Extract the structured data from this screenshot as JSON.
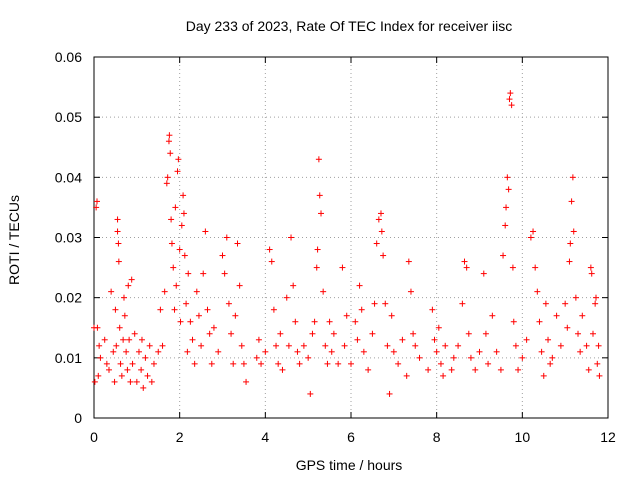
{
  "chart_data": {
    "type": "scatter",
    "title": "Day 233 of 2023, Rate Of TEC Index for receiver iisc",
    "xlabel": "GPS time / hours",
    "ylabel": "ROTI / TECUs",
    "xlim": [
      0,
      12
    ],
    "ylim": [
      0,
      0.06
    ],
    "xticks": [
      "0",
      "2",
      "4",
      "6",
      "8",
      "10",
      "12"
    ],
    "yticks": [
      "0",
      "0.01",
      "0.02",
      "0.03",
      "0.04",
      "0.05",
      "0.06"
    ],
    "grid": true,
    "legend": "none",
    "marker": "plus",
    "color": "#ff0000",
    "series": [
      {
        "points": [
          [
            0.0,
            0.015
          ],
          [
            0.02,
            0.006
          ],
          [
            0.05,
            0.035
          ],
          [
            0.07,
            0.036
          ],
          [
            0.08,
            0.015
          ],
          [
            0.1,
            0.007
          ],
          [
            0.12,
            0.012
          ],
          [
            0.15,
            0.01
          ],
          [
            0.25,
            0.013
          ],
          [
            0.3,
            0.009
          ],
          [
            0.35,
            0.008
          ],
          [
            0.4,
            0.021
          ],
          [
            0.45,
            0.011
          ],
          [
            0.48,
            0.006
          ],
          [
            0.5,
            0.018
          ],
          [
            0.52,
            0.012
          ],
          [
            0.55,
            0.033
          ],
          [
            0.55,
            0.031
          ],
          [
            0.57,
            0.029
          ],
          [
            0.58,
            0.026
          ],
          [
            0.6,
            0.015
          ],
          [
            0.62,
            0.009
          ],
          [
            0.65,
            0.007
          ],
          [
            0.68,
            0.013
          ],
          [
            0.7,
            0.02
          ],
          [
            0.72,
            0.017
          ],
          [
            0.75,
            0.011
          ],
          [
            0.78,
            0.008
          ],
          [
            0.8,
            0.022
          ],
          [
            0.82,
            0.013
          ],
          [
            0.85,
            0.006
          ],
          [
            0.88,
            0.023
          ],
          [
            0.9,
            0.009
          ],
          [
            0.95,
            0.014
          ],
          [
            1.0,
            0.006
          ],
          [
            1.05,
            0.011
          ],
          [
            1.1,
            0.008
          ],
          [
            1.12,
            0.013
          ],
          [
            1.15,
            0.005
          ],
          [
            1.2,
            0.01
          ],
          [
            1.25,
            0.007
          ],
          [
            1.3,
            0.012
          ],
          [
            1.35,
            0.006
          ],
          [
            1.4,
            0.009
          ],
          [
            1.5,
            0.011
          ],
          [
            1.55,
            0.018
          ],
          [
            1.6,
            0.012
          ],
          [
            1.65,
            0.021
          ],
          [
            1.7,
            0.039
          ],
          [
            1.72,
            0.04
          ],
          [
            1.75,
            0.046
          ],
          [
            1.76,
            0.047
          ],
          [
            1.78,
            0.044
          ],
          [
            1.8,
            0.033
          ],
          [
            1.82,
            0.029
          ],
          [
            1.85,
            0.025
          ],
          [
            1.88,
            0.018
          ],
          [
            1.9,
            0.035
          ],
          [
            1.92,
            0.022
          ],
          [
            1.95,
            0.041
          ],
          [
            1.97,
            0.043
          ],
          [
            2.0,
            0.028
          ],
          [
            2.02,
            0.016
          ],
          [
            2.05,
            0.032
          ],
          [
            2.08,
            0.037
          ],
          [
            2.1,
            0.034
          ],
          [
            2.12,
            0.027
          ],
          [
            2.15,
            0.019
          ],
          [
            2.18,
            0.011
          ],
          [
            2.2,
            0.024
          ],
          [
            2.25,
            0.016
          ],
          [
            2.3,
            0.013
          ],
          [
            2.35,
            0.009
          ],
          [
            2.4,
            0.021
          ],
          [
            2.45,
            0.017
          ],
          [
            2.5,
            0.012
          ],
          [
            2.55,
            0.024
          ],
          [
            2.6,
            0.031
          ],
          [
            2.65,
            0.018
          ],
          [
            2.7,
            0.014
          ],
          [
            2.75,
            0.009
          ],
          [
            2.8,
            0.015
          ],
          [
            2.9,
            0.011
          ],
          [
            3.0,
            0.027
          ],
          [
            3.05,
            0.024
          ],
          [
            3.1,
            0.03
          ],
          [
            3.15,
            0.019
          ],
          [
            3.2,
            0.014
          ],
          [
            3.25,
            0.009
          ],
          [
            3.3,
            0.017
          ],
          [
            3.35,
            0.029
          ],
          [
            3.4,
            0.022
          ],
          [
            3.45,
            0.012
          ],
          [
            3.5,
            0.009
          ],
          [
            3.55,
            0.006
          ],
          [
            3.8,
            0.01
          ],
          [
            3.85,
            0.013
          ],
          [
            3.9,
            0.009
          ],
          [
            4.0,
            0.011
          ],
          [
            4.1,
            0.028
          ],
          [
            4.15,
            0.026
          ],
          [
            4.2,
            0.018
          ],
          [
            4.25,
            0.012
          ],
          [
            4.3,
            0.009
          ],
          [
            4.35,
            0.014
          ],
          [
            4.4,
            0.008
          ],
          [
            4.5,
            0.02
          ],
          [
            4.55,
            0.012
          ],
          [
            4.6,
            0.03
          ],
          [
            4.65,
            0.022
          ],
          [
            4.7,
            0.016
          ],
          [
            4.75,
            0.011
          ],
          [
            4.8,
            0.009
          ],
          [
            4.9,
            0.012
          ],
          [
            5.0,
            0.01
          ],
          [
            5.05,
            0.004
          ],
          [
            5.1,
            0.014
          ],
          [
            5.15,
            0.016
          ],
          [
            5.2,
            0.025
          ],
          [
            5.22,
            0.028
          ],
          [
            5.25,
            0.043
          ],
          [
            5.27,
            0.037
          ],
          [
            5.3,
            0.034
          ],
          [
            5.35,
            0.021
          ],
          [
            5.4,
            0.012
          ],
          [
            5.45,
            0.009
          ],
          [
            5.5,
            0.016
          ],
          [
            5.55,
            0.011
          ],
          [
            5.6,
            0.014
          ],
          [
            5.7,
            0.009
          ],
          [
            5.8,
            0.025
          ],
          [
            5.85,
            0.012
          ],
          [
            5.9,
            0.017
          ],
          [
            6.0,
            0.009
          ],
          [
            6.1,
            0.016
          ],
          [
            6.15,
            0.013
          ],
          [
            6.2,
            0.022
          ],
          [
            6.25,
            0.018
          ],
          [
            6.3,
            0.011
          ],
          [
            6.4,
            0.008
          ],
          [
            6.5,
            0.014
          ],
          [
            6.55,
            0.019
          ],
          [
            6.6,
            0.029
          ],
          [
            6.65,
            0.033
          ],
          [
            6.7,
            0.034
          ],
          [
            6.72,
            0.031
          ],
          [
            6.75,
            0.027
          ],
          [
            6.8,
            0.019
          ],
          [
            6.85,
            0.012
          ],
          [
            6.9,
            0.004
          ],
          [
            6.95,
            0.017
          ],
          [
            7.0,
            0.011
          ],
          [
            7.1,
            0.009
          ],
          [
            7.2,
            0.013
          ],
          [
            7.3,
            0.007
          ],
          [
            7.35,
            0.026
          ],
          [
            7.4,
            0.021
          ],
          [
            7.45,
            0.014
          ],
          [
            7.5,
            0.012
          ],
          [
            7.6,
            0.01
          ],
          [
            7.8,
            0.008
          ],
          [
            7.9,
            0.018
          ],
          [
            7.95,
            0.013
          ],
          [
            8.0,
            0.011
          ],
          [
            8.05,
            0.015
          ],
          [
            8.1,
            0.009
          ],
          [
            8.15,
            0.007
          ],
          [
            8.2,
            0.012
          ],
          [
            8.35,
            0.008
          ],
          [
            8.4,
            0.01
          ],
          [
            8.5,
            0.012
          ],
          [
            8.6,
            0.019
          ],
          [
            8.65,
            0.026
          ],
          [
            8.7,
            0.025
          ],
          [
            8.75,
            0.014
          ],
          [
            8.8,
            0.01
          ],
          [
            8.9,
            0.008
          ],
          [
            9.0,
            0.011
          ],
          [
            9.1,
            0.024
          ],
          [
            9.15,
            0.014
          ],
          [
            9.2,
            0.009
          ],
          [
            9.3,
            0.017
          ],
          [
            9.4,
            0.011
          ],
          [
            9.5,
            0.008
          ],
          [
            9.55,
            0.027
          ],
          [
            9.6,
            0.032
          ],
          [
            9.62,
            0.035
          ],
          [
            9.65,
            0.04
          ],
          [
            9.68,
            0.038
          ],
          [
            9.7,
            0.053
          ],
          [
            9.72,
            0.054
          ],
          [
            9.75,
            0.052
          ],
          [
            9.78,
            0.025
          ],
          [
            9.8,
            0.016
          ],
          [
            9.85,
            0.012
          ],
          [
            9.9,
            0.008
          ],
          [
            10.0,
            0.01
          ],
          [
            10.1,
            0.013
          ],
          [
            10.2,
            0.03
          ],
          [
            10.25,
            0.031
          ],
          [
            10.3,
            0.025
          ],
          [
            10.35,
            0.021
          ],
          [
            10.4,
            0.016
          ],
          [
            10.45,
            0.011
          ],
          [
            10.5,
            0.007
          ],
          [
            10.55,
            0.019
          ],
          [
            10.6,
            0.013
          ],
          [
            10.65,
            0.009
          ],
          [
            10.7,
            0.01
          ],
          [
            10.8,
            0.017
          ],
          [
            10.9,
            0.012
          ],
          [
            11.0,
            0.019
          ],
          [
            11.05,
            0.015
          ],
          [
            11.1,
            0.026
          ],
          [
            11.12,
            0.029
          ],
          [
            11.15,
            0.036
          ],
          [
            11.18,
            0.04
          ],
          [
            11.2,
            0.031
          ],
          [
            11.25,
            0.02
          ],
          [
            11.3,
            0.014
          ],
          [
            11.35,
            0.011
          ],
          [
            11.4,
            0.017
          ],
          [
            11.5,
            0.012
          ],
          [
            11.55,
            0.008
          ],
          [
            11.6,
            0.025
          ],
          [
            11.62,
            0.024
          ],
          [
            11.65,
            0.014
          ],
          [
            11.7,
            0.019
          ],
          [
            11.72,
            0.02
          ],
          [
            11.75,
            0.009
          ],
          [
            11.78,
            0.012
          ],
          [
            11.8,
            0.007
          ]
        ]
      }
    ]
  }
}
